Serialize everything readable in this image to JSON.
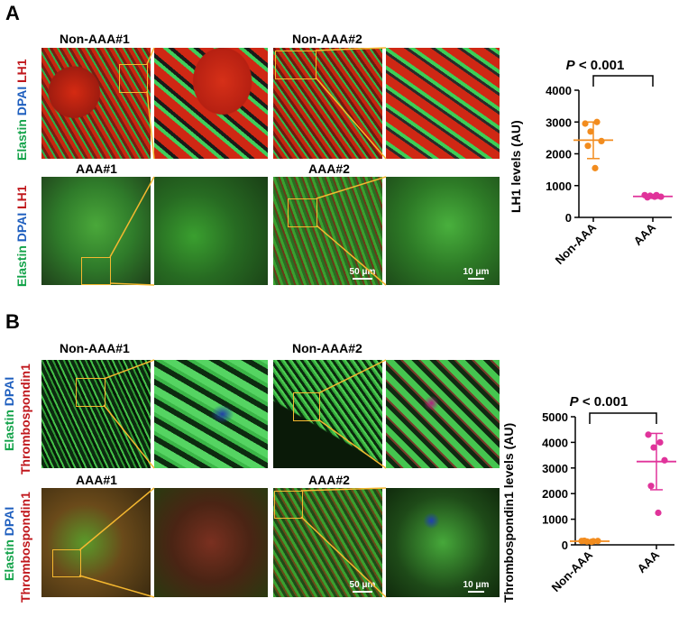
{
  "panels": [
    {
      "letter": "A",
      "row_labels": [
        {
          "parts": [
            {
              "text": "Elastin",
              "color": "green"
            },
            {
              "text": "DPAI",
              "color": "blue"
            },
            {
              "text": "LH1",
              "color": "red"
            }
          ]
        },
        {
          "parts": [
            {
              "text": "Elastin",
              "color": "green"
            },
            {
              "text": "DPAI",
              "color": "blue"
            },
            {
              "text": "LH1",
              "color": "red"
            }
          ]
        }
      ],
      "samples": [
        "Non-AAA#1",
        "Non-AAA#2",
        "AAA#1",
        "AAA#2"
      ],
      "scale_bars": {
        "overview": "50 μm",
        "zoom": "10 μm"
      }
    },
    {
      "letter": "B",
      "row_labels": [
        {
          "parts": [
            {
              "text": "Elastin",
              "color": "green"
            },
            {
              "text": "DPAI",
              "color": "blue"
            },
            {
              "text": "Thrombospondin1",
              "color": "red"
            }
          ]
        },
        {
          "parts": [
            {
              "text": "Elastin",
              "color": "green"
            },
            {
              "text": "DPAI",
              "color": "blue"
            },
            {
              "text": "Thrombospondin1",
              "color": "red"
            }
          ]
        }
      ],
      "samples": [
        "Non-AAA#1",
        "Non-AAA#2",
        "AAA#1",
        "AAA#2"
      ],
      "scale_bars": {
        "overview": "50 μm",
        "zoom": "10 μm"
      }
    }
  ],
  "chart_data": [
    {
      "type": "scatter",
      "title": "",
      "ylabel": "LH1 levels (AU)",
      "categories": [
        "Non-AAA",
        "AAA"
      ],
      "ylim": [
        0,
        4000
      ],
      "yticks": [
        0,
        1000,
        2000,
        3000,
        4000
      ],
      "significance": {
        "prefix": "P",
        "text": " < 0.001"
      },
      "series": [
        {
          "category": "Non-AAA",
          "color": "#f28c1e",
          "points": [
            2950,
            3000,
            2700,
            2400,
            2250,
            1550
          ],
          "mean": 2430,
          "sd_low": 1850,
          "sd_high": 3000
        },
        {
          "category": "AAA",
          "color": "#e0339a",
          "points": [
            700,
            700,
            680,
            650,
            630,
            650
          ],
          "mean": 660,
          "sd_low": 600,
          "sd_high": 720
        }
      ]
    },
    {
      "type": "scatter",
      "title": "",
      "ylabel": "Thrombospondin1 levels (AU)",
      "categories": [
        "Non-AAA",
        "AAA"
      ],
      "ylim": [
        0,
        5000
      ],
      "yticks": [
        0,
        1000,
        2000,
        3000,
        4000,
        5000
      ],
      "significance": {
        "prefix": "P",
        "text": " < 0.001"
      },
      "series": [
        {
          "category": "Non-AAA",
          "color": "#f28c1e",
          "points": [
            150,
            140,
            130,
            150,
            160,
            120
          ],
          "mean": 140,
          "sd_low": 110,
          "sd_high": 170
        },
        {
          "category": "AAA",
          "color": "#e0339a",
          "points": [
            4300,
            4000,
            3800,
            3300,
            2300,
            1250
          ],
          "mean": 3250,
          "sd_low": 2150,
          "sd_high": 4350
        }
      ]
    }
  ]
}
